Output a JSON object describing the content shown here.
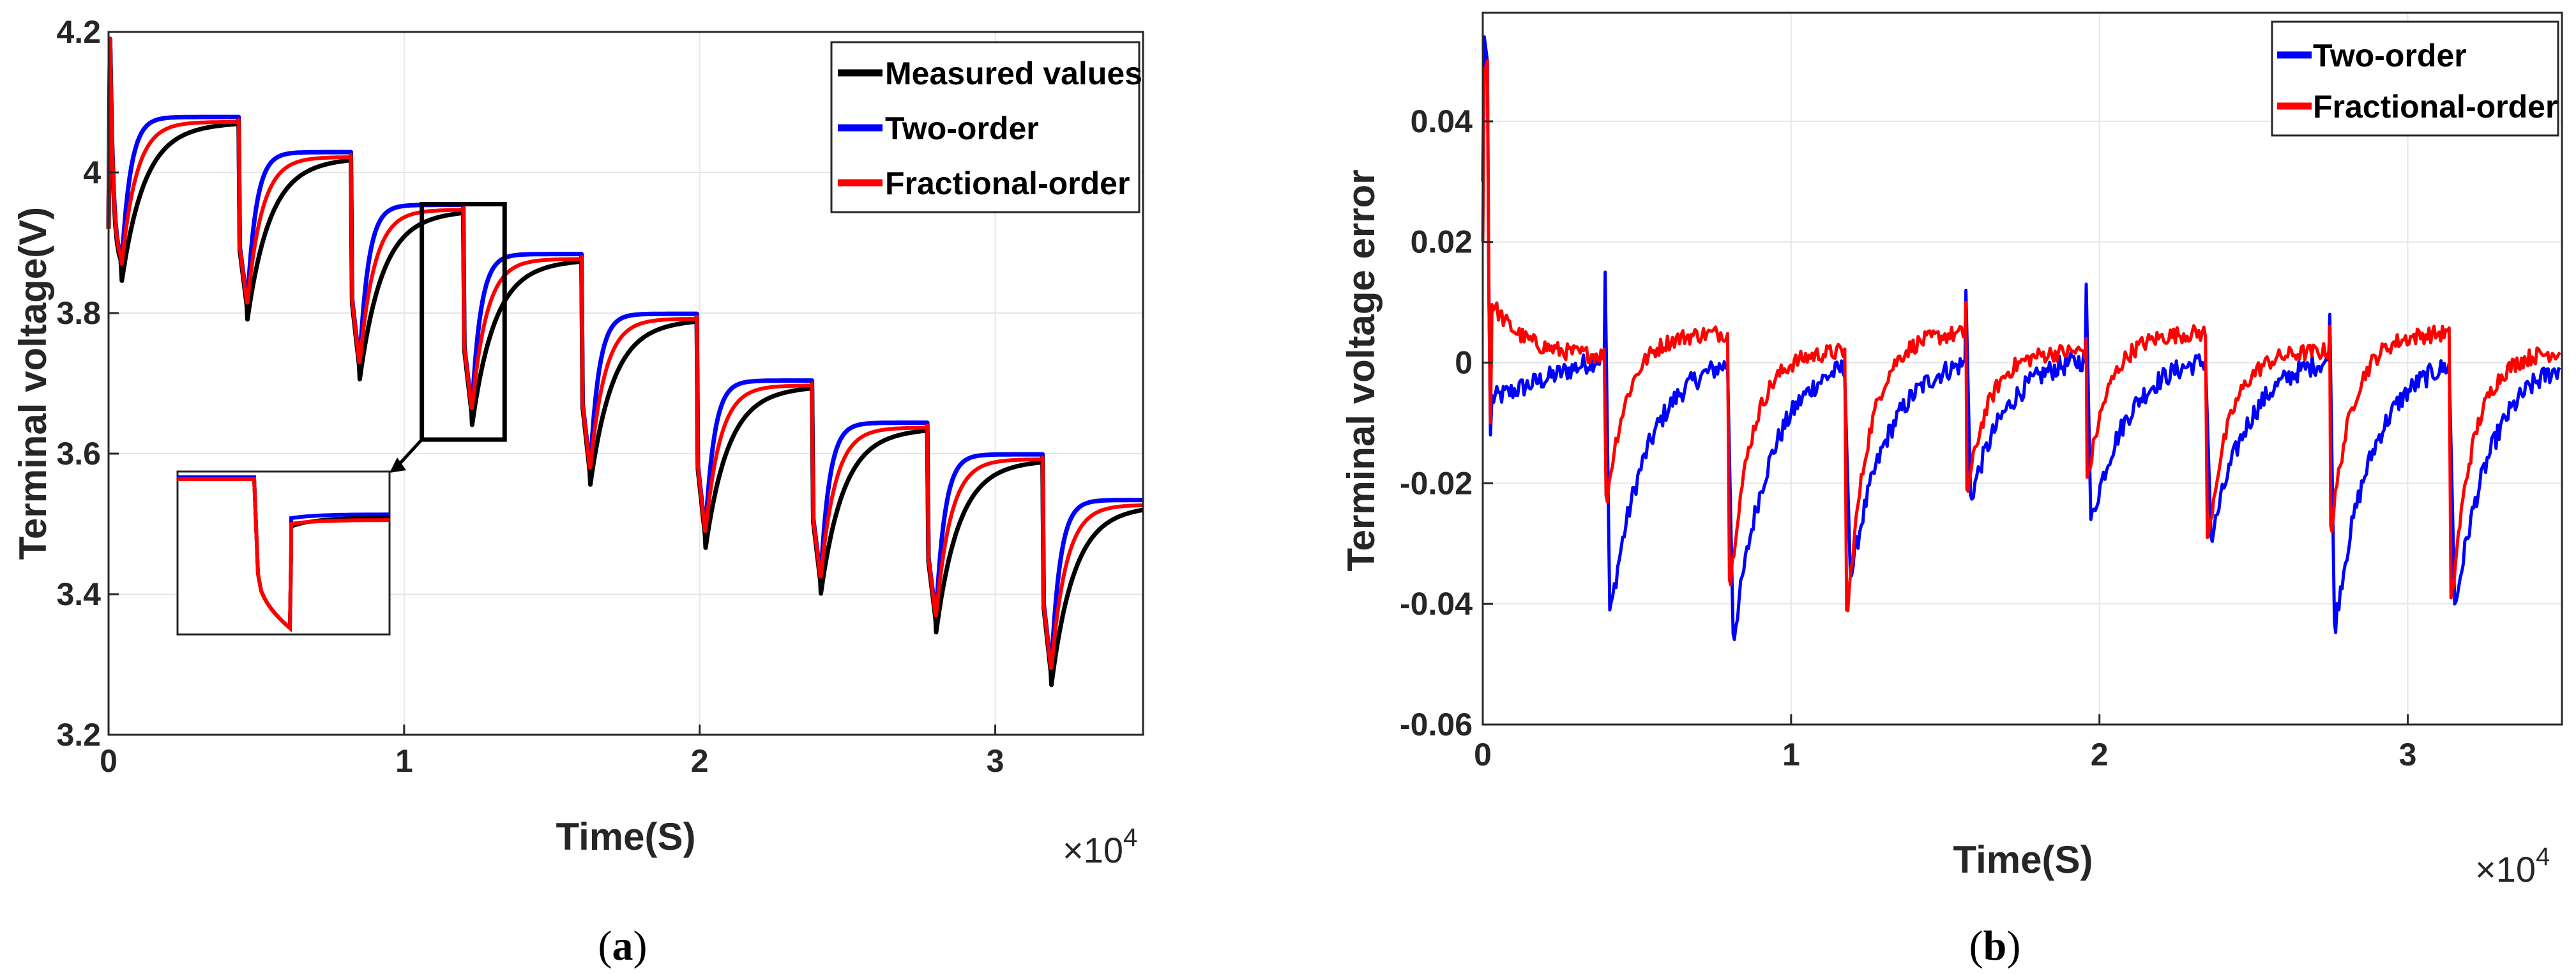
{
  "chart_data": [
    {
      "id": "a",
      "type": "line",
      "caption_letter": "a",
      "xlabel": "Time(S)",
      "ylabel": "Terminal voltage(V)",
      "x_multiplier": "×10",
      "x_exponent": "4",
      "xlim": [
        0,
        3.5
      ],
      "ylim": [
        3.2,
        4.2
      ],
      "xticks": [
        0,
        1,
        2,
        3
      ],
      "xtick_labels": [
        "0",
        "1",
        "2",
        "3"
      ],
      "yticks": [
        3.2,
        3.4,
        3.6,
        3.8,
        4.0,
        4.2
      ],
      "ytick_labels": [
        "3.2",
        "3.4",
        "3.6",
        "3.8",
        "4",
        "4.2"
      ],
      "grid": true,
      "legend": "top-right",
      "series": [
        {
          "name": "Measured values",
          "color": "#000000"
        },
        {
          "name": "Two-order",
          "color": "#0000ff"
        },
        {
          "name": "Fractional-order",
          "color": "#ff0000"
        }
      ],
      "pulses": [
        {
          "start": 0.04,
          "end": 0.44,
          "plateau": 4.075,
          "rest_start": 4.19,
          "min": 3.87
        },
        {
          "start": 0.44,
          "end": 0.82,
          "plateau": 4.025,
          "rest_start": 4.075,
          "min": 3.815
        },
        {
          "start": 0.82,
          "end": 1.2,
          "plateau": 3.95,
          "rest_start": 4.025,
          "min": 3.73
        },
        {
          "start": 1.2,
          "end": 1.6,
          "plateau": 3.88,
          "rest_start": 3.95,
          "min": 3.665
        },
        {
          "start": 1.6,
          "end": 1.99,
          "plateau": 3.795,
          "rest_start": 3.88,
          "min": 3.58
        },
        {
          "start": 1.99,
          "end": 2.38,
          "plateau": 3.7,
          "rest_start": 3.795,
          "min": 3.49
        },
        {
          "start": 2.38,
          "end": 2.77,
          "plateau": 3.64,
          "rest_start": 3.7,
          "min": 3.425
        },
        {
          "start": 2.77,
          "end": 3.16,
          "plateau": 3.595,
          "rest_start": 3.64,
          "min": 3.37
        },
        {
          "start": 3.16,
          "end": 3.5,
          "plateau": 3.53,
          "rest_start": 3.595,
          "min": 3.295
        }
      ],
      "zoom_window": {
        "x": [
          1.06,
          1.34
        ],
        "y": [
          3.62,
          3.955
        ]
      }
    },
    {
      "id": "b",
      "type": "line",
      "caption_letter": "b",
      "xlabel": "Time(S)",
      "ylabel": "Terminal voltage error",
      "x_multiplier": "×10",
      "x_exponent": "4",
      "xlim": [
        0,
        3.5
      ],
      "ylim": [
        -0.06,
        0.058
      ],
      "xticks": [
        0,
        1,
        2,
        3
      ],
      "xtick_labels": [
        "0",
        "1",
        "2",
        "3"
      ],
      "yticks": [
        -0.06,
        -0.04,
        -0.02,
        0,
        0.02,
        0.04
      ],
      "ytick_labels": [
        "-0.06",
        "-0.04",
        "-0.02",
        "0",
        "0.02",
        "0.04"
      ],
      "grid": true,
      "legend": "top-right",
      "series": [
        {
          "name": "Two-order",
          "color": "#0000ff"
        },
        {
          "name": "Fractional-order",
          "color": "#ff0000"
        }
      ],
      "events": [
        {
          "x": 0.02,
          "two_min": -0.012,
          "frac_min": -0.01,
          "two_spike": 0.054,
          "frac_spike": 0.05
        },
        {
          "x": 0.4,
          "two_min": -0.041,
          "frac_min": -0.022,
          "two_spike": 0.015,
          "frac_spike": 0.0
        },
        {
          "x": 0.8,
          "two_min": -0.045,
          "frac_min": -0.036,
          "two_spike": 0.0,
          "frac_spike": 0.0
        },
        {
          "x": 1.18,
          "two_min": -0.035,
          "frac_min": -0.041,
          "two_spike": 0.0,
          "frac_spike": 0.0
        },
        {
          "x": 1.57,
          "two_min": -0.022,
          "frac_min": -0.021,
          "two_spike": 0.012,
          "frac_spike": 0.01
        },
        {
          "x": 1.96,
          "two_min": -0.026,
          "frac_min": -0.019,
          "two_spike": 0.013,
          "frac_spike": 0.004
        },
        {
          "x": 2.35,
          "two_min": -0.029,
          "frac_min": -0.029,
          "two_spike": 0.0,
          "frac_spike": 0.0
        },
        {
          "x": 2.75,
          "two_min": -0.043,
          "frac_min": -0.027,
          "two_spike": 0.008,
          "frac_spike": 0.006
        },
        {
          "x": 3.14,
          "two_min": -0.04,
          "frac_min": -0.039,
          "two_spike": 0.0,
          "frac_spike": 0.0
        }
      ]
    }
  ]
}
